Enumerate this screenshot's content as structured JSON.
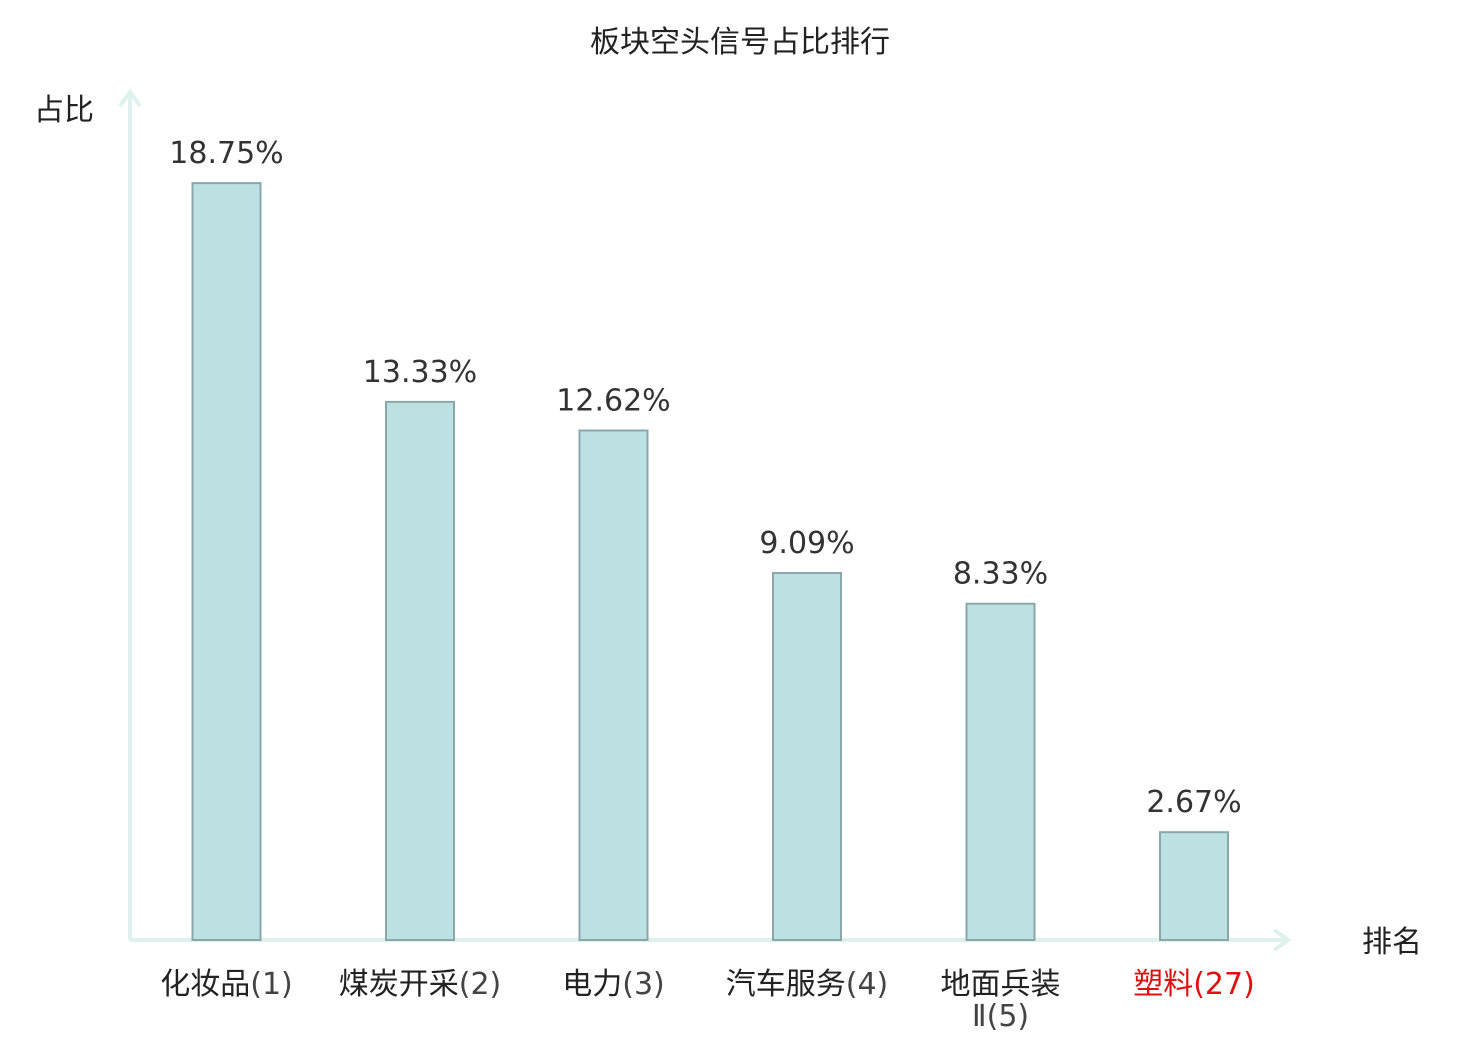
{
  "chart_data": {
    "type": "bar",
    "title": "板块空头信号占比排行",
    "ylabel": "占比",
    "xlabel": "排名",
    "ylim": [
      0,
      20
    ],
    "grid": false,
    "categories": [
      {
        "name": "化妆品",
        "rank": "(1)",
        "name_line2": ""
      },
      {
        "name": "煤炭开采",
        "rank": "(2)",
        "name_line2": ""
      },
      {
        "name": "电力",
        "rank": "(3)",
        "name_line2": ""
      },
      {
        "name": "汽车服务",
        "rank": "(4)",
        "name_line2": ""
      },
      {
        "name": "地面兵装",
        "rank": "",
        "name_line2": "Ⅱ(5)"
      },
      {
        "name": "塑料",
        "rank": "(27)",
        "name_line2": ""
      }
    ],
    "values": [
      18.75,
      13.33,
      12.62,
      9.09,
      8.33,
      2.67
    ],
    "value_labels": [
      "18.75%",
      "13.33%",
      "12.62%",
      "9.09%",
      "8.33%",
      "2.67%"
    ],
    "highlight_index": 5,
    "colors": {
      "bar_fill": "#bde0e3",
      "bar_stroke": "#8aa7ab",
      "axis": "#dff1ef",
      "highlight_text": "#e01010",
      "text": "#222222"
    }
  }
}
